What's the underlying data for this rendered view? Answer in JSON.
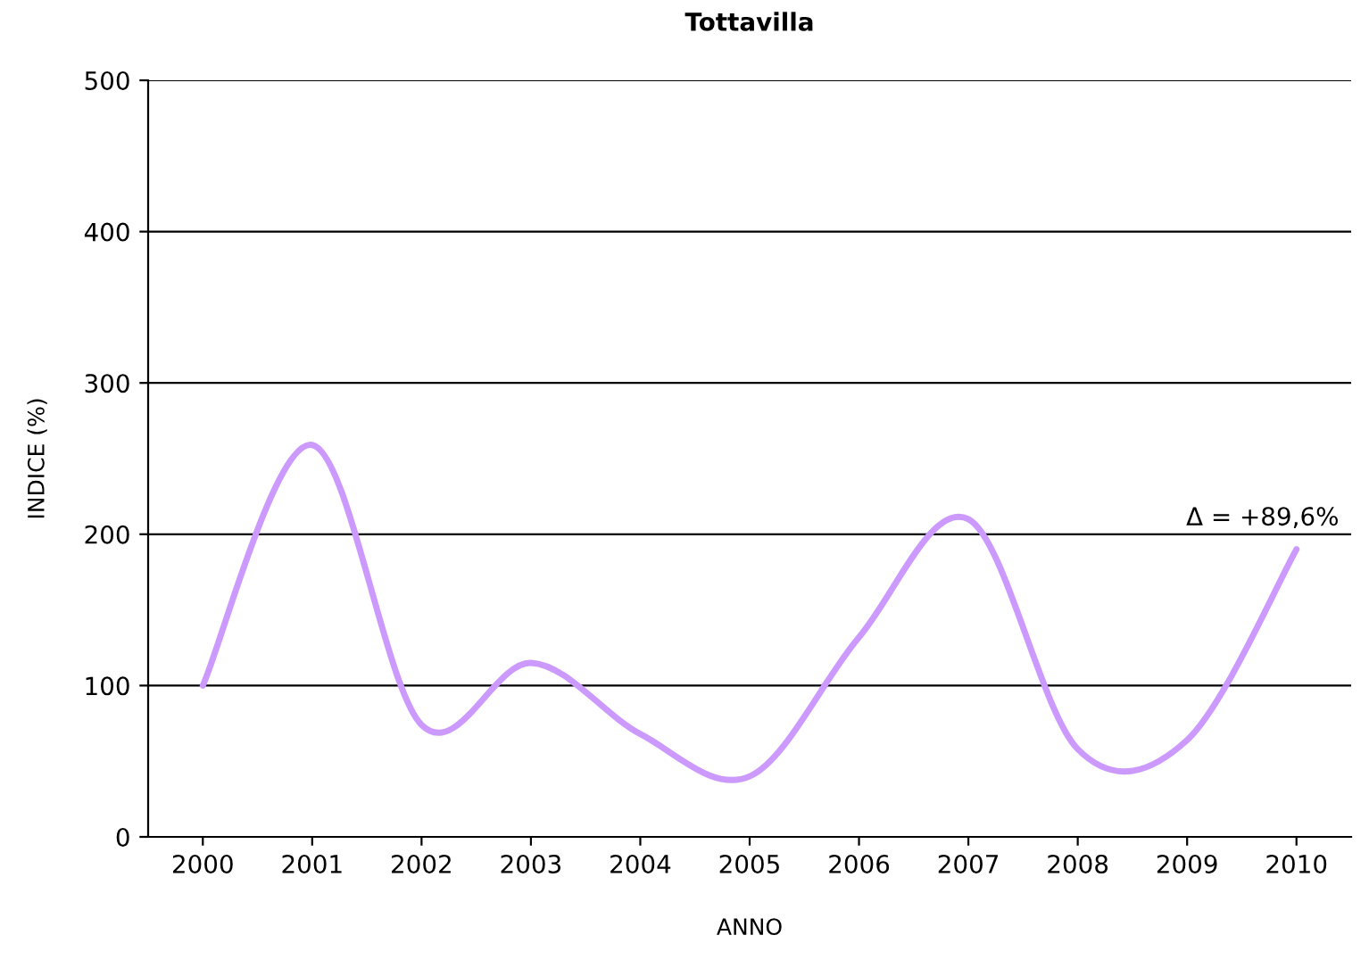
{
  "chart_data": {
    "type": "line",
    "title": "Tottavilla",
    "xlabel": "ANNO",
    "ylabel": "INDICE (%)",
    "categories": [
      "2000",
      "2001",
      "2002",
      "2003",
      "2004",
      "2005",
      "2006",
      "2007",
      "2008",
      "2009",
      "2010"
    ],
    "series": [
      {
        "color": "#cc99ff",
        "values": [
          100,
          259,
          74,
          115,
          68,
          40,
          132,
          210,
          58,
          64,
          190
        ]
      }
    ],
    "ylim": [
      0,
      500
    ],
    "yticks": [
      0,
      100,
      200,
      300,
      400,
      500
    ],
    "grid": "y",
    "marker": "none",
    "line_style": "solid",
    "annotations": [
      "Δ = +89,6%"
    ]
  }
}
